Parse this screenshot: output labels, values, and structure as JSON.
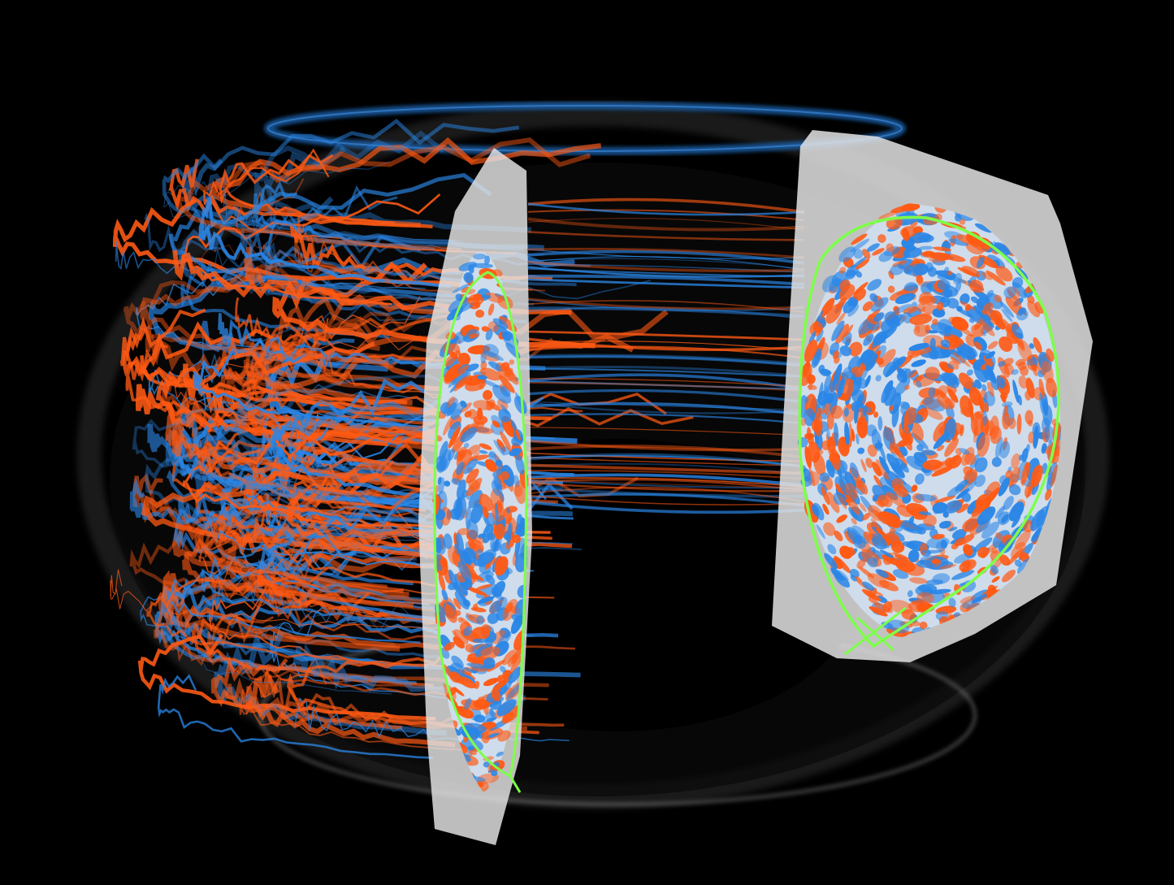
{
  "scene": {
    "description_free": true,
    "colors": {
      "background": "#000000",
      "positive": "#ff5a14",
      "negative": "#2a86e6",
      "separatrix": "#7dff4a",
      "plane": "#d9d9d9",
      "halo": "#9a9a9a"
    }
  }
}
